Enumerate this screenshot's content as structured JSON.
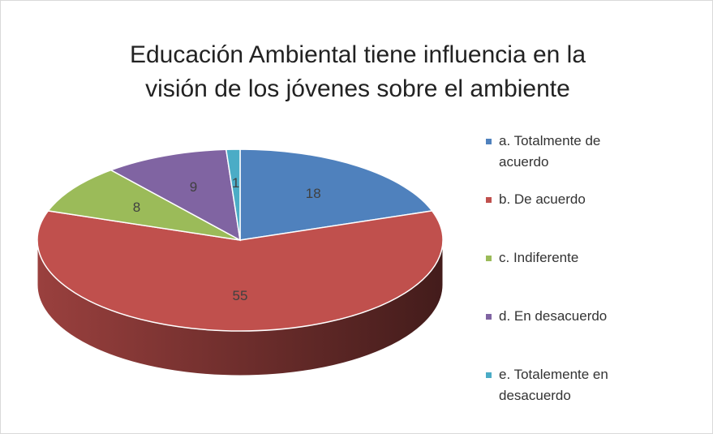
{
  "chart_data": {
    "type": "pie3d",
    "title": "Educación Ambiental tiene influencia en la visión de los jóvenes sobre el ambiente",
    "categories": [
      "a. Totalmente de acuerdo",
      "b. De acuerdo",
      "c. Indiferente",
      "d. En desacuerdo",
      "e. Totalemente en desacuerdo"
    ],
    "values": [
      18,
      55,
      8,
      9,
      1
    ],
    "colors": [
      "#4f81bd",
      "#c0504d",
      "#9bbb59",
      "#8064a2",
      "#4bacc6"
    ],
    "legend": "right"
  }
}
